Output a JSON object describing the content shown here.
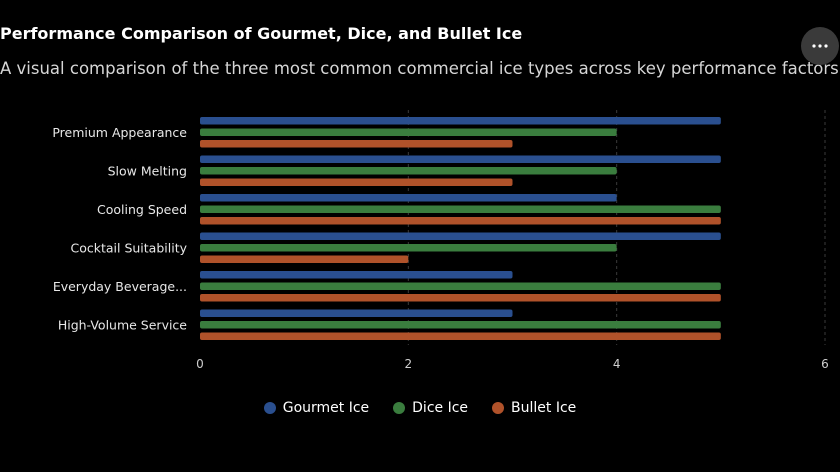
{
  "header": {
    "title": "Performance Comparison of Gourmet, Dice, and Bullet Ice",
    "subtitle": "A visual comparison of the three most common commercial ice types across key performance factors."
  },
  "menu_icon": "more-horizontal-icon",
  "colors": {
    "background": "#000000",
    "gridline": "#3a3a3a",
    "tick_label": "#cfcfcf"
  },
  "chart_data": {
    "type": "bar",
    "orientation": "horizontal",
    "categories": [
      "Premium Appearance",
      "Slow Melting",
      "Cooling Speed",
      "Cocktail Suitability",
      "Everyday Beverage...",
      "High-Volume Service"
    ],
    "series": [
      {
        "name": "Gourmet Ice",
        "color": "#2a4f8f",
        "values": [
          5,
          5,
          4,
          5,
          3,
          3
        ]
      },
      {
        "name": "Dice Ice",
        "color": "#3a7d3e",
        "values": [
          4,
          4,
          5,
          4,
          5,
          5
        ]
      },
      {
        "name": "Bullet Ice",
        "color": "#b0522a",
        "values": [
          3,
          3,
          5,
          2,
          5,
          5
        ]
      }
    ],
    "xlim": [
      0,
      6
    ],
    "xticks": [
      "0",
      "2",
      "4",
      "6"
    ],
    "grid": true,
    "legend_position": "bottom"
  }
}
